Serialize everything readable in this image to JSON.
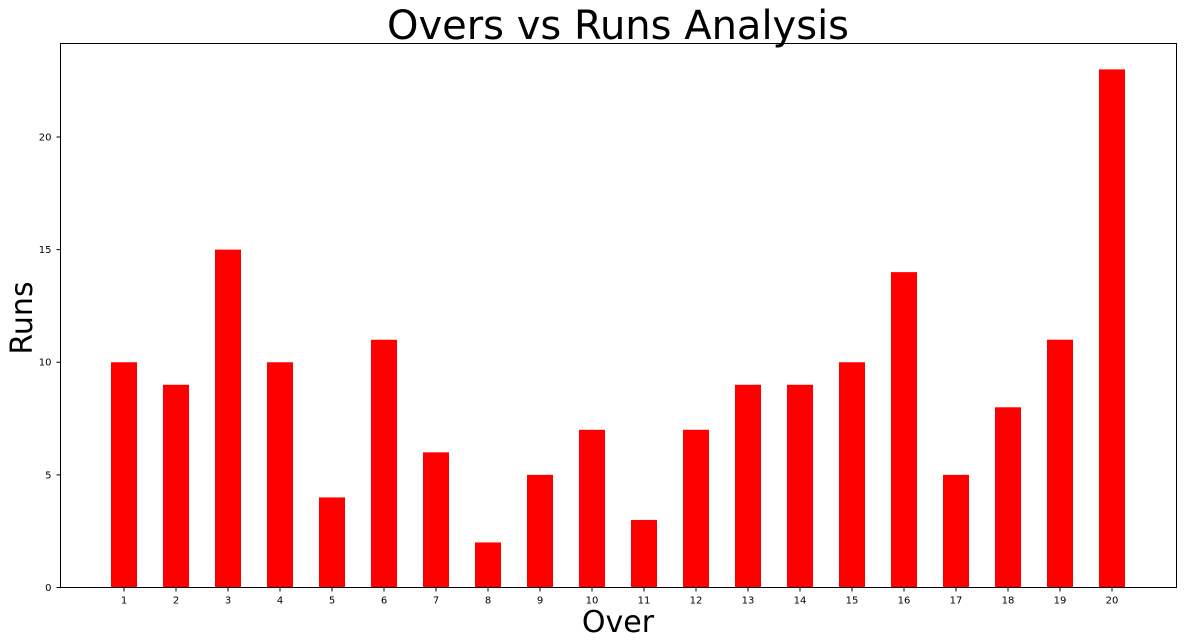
{
  "chart_data": {
    "type": "bar",
    "title": "Overs vs Runs Analysis",
    "xlabel": "Over",
    "ylabel": "Runs",
    "categories": [
      "1",
      "2",
      "3",
      "4",
      "5",
      "6",
      "7",
      "8",
      "9",
      "10",
      "11",
      "12",
      "13",
      "14",
      "15",
      "16",
      "17",
      "18",
      "19",
      "20"
    ],
    "values": [
      10,
      9,
      15,
      10,
      4,
      11,
      6,
      2,
      5,
      7,
      3,
      7,
      9,
      9,
      10,
      14,
      5,
      8,
      11,
      23
    ],
    "yticks": [
      0,
      5,
      10,
      15,
      20
    ],
    "ylim": [
      0,
      24.15
    ],
    "bar_color": "#ff0000",
    "grid": false,
    "legend": "none"
  }
}
